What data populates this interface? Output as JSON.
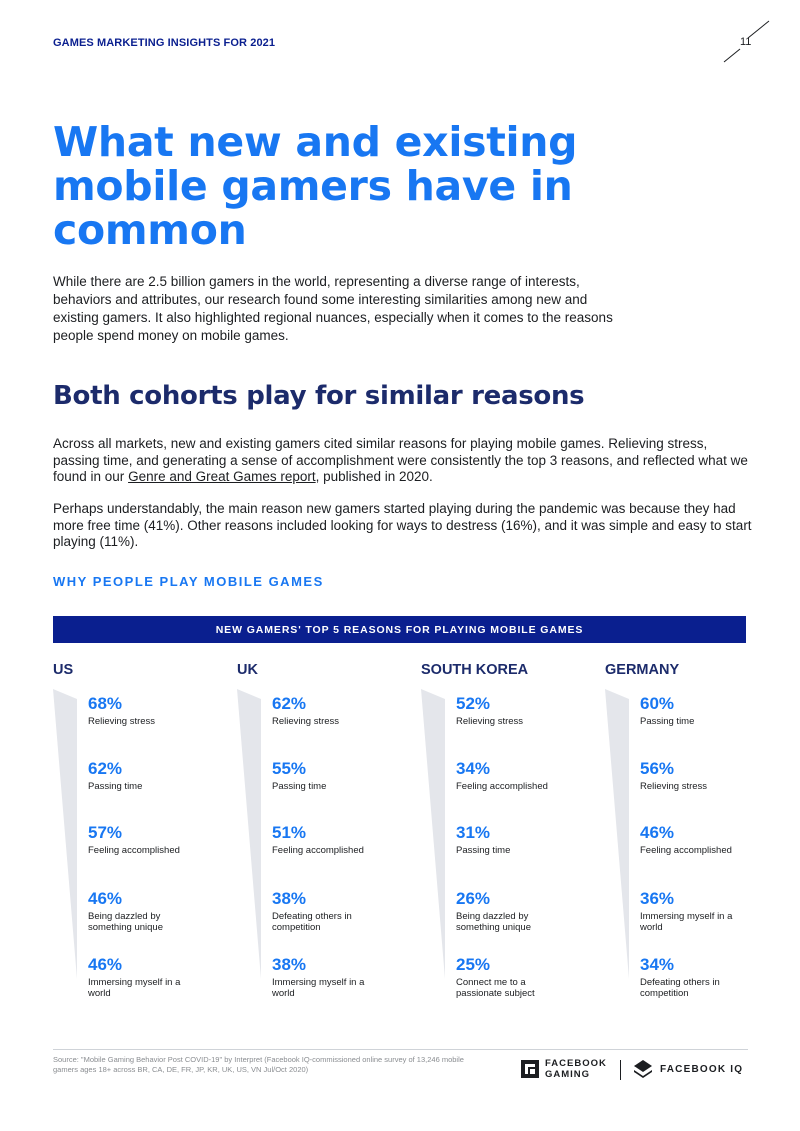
{
  "header": {
    "title": "GAMES MARKETING INSIGHTS FOR 2021",
    "page_number": "11"
  },
  "title": "What new and existing mobile gamers have in common",
  "intro": "While there are 2.5 billion gamers in the world, representing a diverse range of interests, behaviors and attributes, our research found some interesting similarities among new and existing gamers. It also highlighted regional nuances, especially when it comes to the reasons people spend money on mobile games.",
  "section": {
    "heading": "Both cohorts play for similar reasons",
    "p1_before": "Across all markets, new and existing gamers cited similar reasons for playing mobile games. Relieving stress, passing time, and generating a sense of accomplishment were consistently the top 3 reasons, and reflected what we found in our ",
    "p1_link": "Genre and Great Games report",
    "p1_after": ", published in 2020.",
    "p2": "Perhaps understandably, the main reason new gamers started playing during the pandemic was because they had more free time (41%). Other reasons included looking for ways to destress (16%), and it was simple and easy to start playing (11%)."
  },
  "chart_label": "WHY PEOPLE PLAY MOBILE GAMES",
  "banner": "NEW GAMERS' TOP 5 REASONS FOR PLAYING MOBILE GAMES",
  "countries": [
    {
      "name": "US",
      "stats": [
        {
          "pct": "68%",
          "reason": "Relieving stress"
        },
        {
          "pct": "62%",
          "reason": "Passing time"
        },
        {
          "pct": "57%",
          "reason": "Feeling accomplished"
        },
        {
          "pct": "46%",
          "reason": "Being dazzled by something unique"
        },
        {
          "pct": "46%",
          "reason": "Immersing myself in a world"
        }
      ]
    },
    {
      "name": "UK",
      "stats": [
        {
          "pct": "62%",
          "reason": "Relieving stress"
        },
        {
          "pct": "55%",
          "reason": "Passing time"
        },
        {
          "pct": "51%",
          "reason": "Feeling accomplished"
        },
        {
          "pct": "38%",
          "reason": "Defeating others in competition"
        },
        {
          "pct": "38%",
          "reason": "Immersing myself in a world"
        }
      ]
    },
    {
      "name": "SOUTH KOREA",
      "stats": [
        {
          "pct": "52%",
          "reason": "Relieving stress"
        },
        {
          "pct": "34%",
          "reason": "Feeling accomplished"
        },
        {
          "pct": "31%",
          "reason": "Passing time"
        },
        {
          "pct": "26%",
          "reason": "Being dazzled by something unique"
        },
        {
          "pct": "25%",
          "reason": "Connect me to a passionate subject"
        }
      ]
    },
    {
      "name": "GERMANY",
      "stats": [
        {
          "pct": "60%",
          "reason": "Passing time"
        },
        {
          "pct": "56%",
          "reason": "Relieving stress"
        },
        {
          "pct": "46%",
          "reason": "Feeling accomplished"
        },
        {
          "pct": "36%",
          "reason": "Immersing myself in a world"
        },
        {
          "pct": "34%",
          "reason": "Defeating others in competition"
        }
      ]
    }
  ],
  "source": "Source: \"Mobile Gaming Behavior Post COVID-19\" by Interpret (Facebook IQ-commissioned online survey of 13,246 mobile gamers ages 18+ across BR, CA, DE, FR, JP, KR, UK, US, VN Jul/Oct 2020)",
  "logos": {
    "gaming_line1": "FACEBOOK",
    "gaming_line2": "GAMING",
    "iq": "FACEBOOK IQ"
  },
  "colors": {
    "accent": "#1877f2",
    "navy": "#0a1f8f",
    "wedge": "#e4e6eb"
  }
}
